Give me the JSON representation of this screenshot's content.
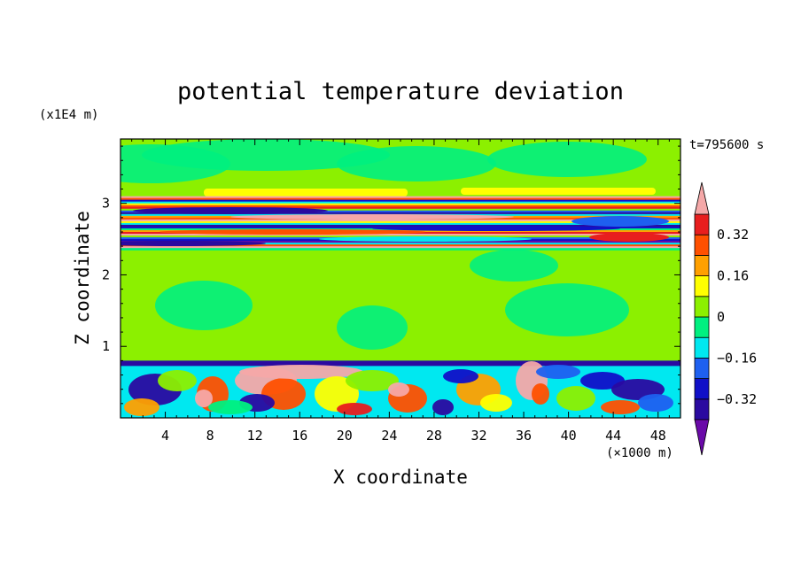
{
  "chart_data": {
    "type": "heatmap",
    "title": "potential temperature deviation",
    "xlabel": "X coordinate",
    "ylabel": "Z coordinate",
    "x_unit": "(×1000 m)",
    "y_unit": "(x1E4 m)",
    "time_label": "t=795600 s",
    "xlim": [
      0,
      50
    ],
    "ylim": [
      0,
      3.9
    ],
    "x_ticks": [
      "4",
      "8",
      "12",
      "16",
      "20",
      "24",
      "28",
      "32",
      "36",
      "40",
      "44",
      "48"
    ],
    "y_ticks": [
      "1",
      "2",
      "3"
    ],
    "colorbar": {
      "labels": [
        "0.32",
        "0.16",
        "0",
        "−0.16",
        "−0.32"
      ],
      "label_values": [
        0.32,
        0.16,
        0,
        -0.16,
        -0.32
      ],
      "levels": [
        -0.4,
        -0.32,
        -0.24,
        -0.16,
        -0.08,
        0,
        0.08,
        0.16,
        0.24,
        0.32,
        0.4
      ],
      "colors": [
        "#6a0aa8",
        "#2a0aa0",
        "#1010c8",
        "#1e60f0",
        "#00e8f0",
        "#00f080",
        "#8cf000",
        "#ffff00",
        "#ffa000",
        "#ff5000",
        "#e81e1e",
        "#f5a8a8"
      ],
      "extend": "both"
    },
    "regions": [
      {
        "z": [
          2.35,
          3.1
        ],
        "description": "banded layers"
      },
      {
        "z": [
          0,
          0.8
        ],
        "description": "turbulent boundary layer"
      }
    ]
  }
}
